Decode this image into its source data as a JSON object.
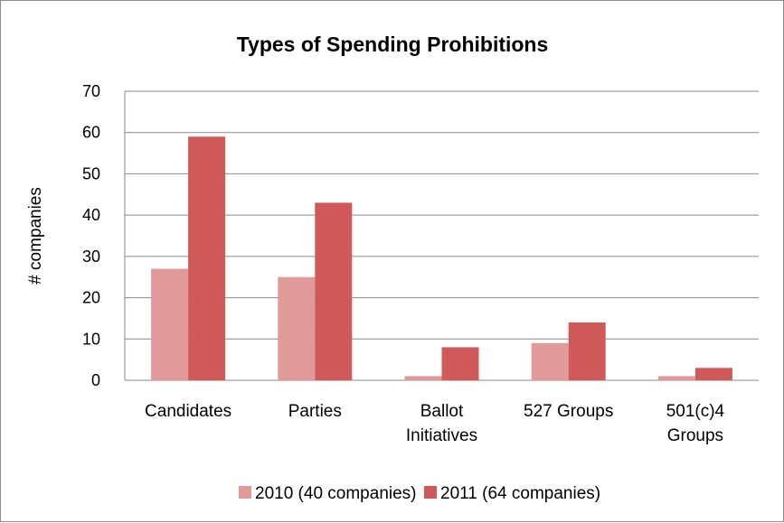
{
  "chart_data": {
    "type": "bar",
    "title": "Types of Spending Prohibitions",
    "xlabel": "",
    "ylabel": "# companies",
    "ylim": [
      0,
      70
    ],
    "yticks": [
      0,
      10,
      20,
      30,
      40,
      50,
      60,
      70
    ],
    "grid": true,
    "legend_position": "bottom",
    "categories": [
      [
        "Candidates"
      ],
      [
        "Parties"
      ],
      [
        "Ballot",
        "Initiatives"
      ],
      [
        "527 Groups"
      ],
      [
        "501(c)4",
        "Groups"
      ]
    ],
    "series": [
      {
        "name": "2010 (40 companies)",
        "color": "#e09a99",
        "values": [
          27,
          25,
          1,
          9,
          1
        ]
      },
      {
        "name": "2011 (64 companies)",
        "color": "#d05a59",
        "values": [
          59,
          43,
          8,
          14,
          3
        ]
      }
    ]
  }
}
